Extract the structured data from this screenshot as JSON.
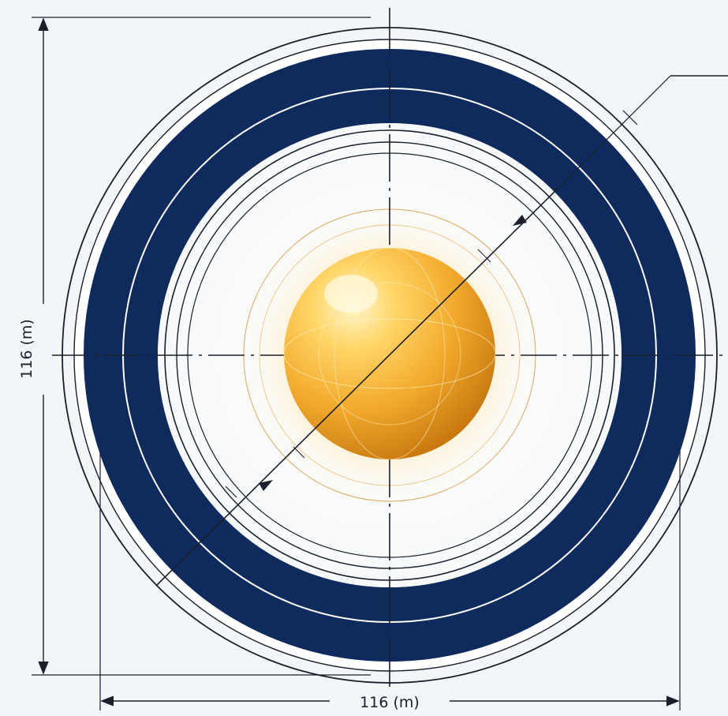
{
  "dimensions": {
    "vertical_label": "116 (m)",
    "horizontal_label": "116 (m)"
  },
  "colors": {
    "background": "#f3f6f9",
    "ring_band": "#0f2a5c",
    "line": "#1a1f2c",
    "sphere_highlight": "#fff4c2",
    "sphere_mid": "#f5b733",
    "sphere_edge": "#c97a0e",
    "glow": "#ffd27a"
  }
}
